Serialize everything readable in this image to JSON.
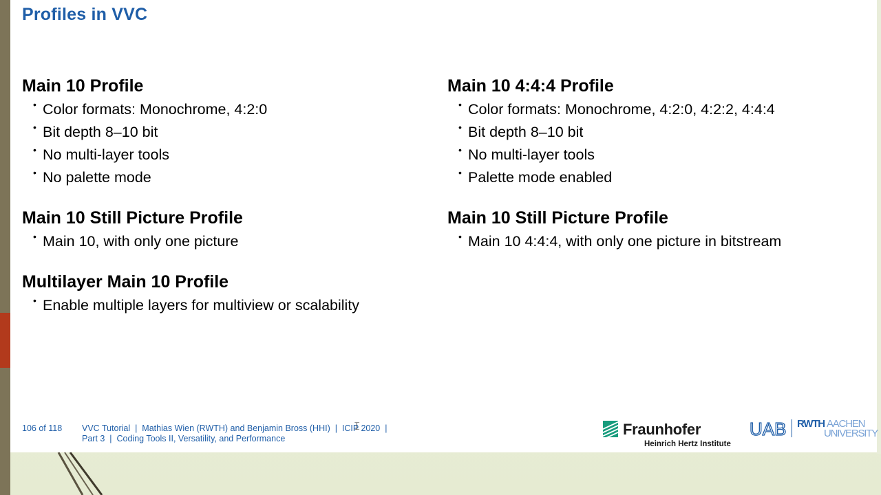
{
  "slide": {
    "title": "Profiles in VVC",
    "left_column": [
      {
        "heading": "Main 10 Profile",
        "bullets": [
          "Color formats: Monochrome, 4:2:0",
          "Bit depth 8–10 bit",
          "No multi-layer tools",
          "No palette mode"
        ]
      },
      {
        "heading": "Main 10 Still Picture Profile",
        "bullets": [
          "Main 10, with only one picture"
        ]
      },
      {
        "heading": "Multilayer Main 10 Profile",
        "bullets": [
          "Enable multiple layers for multiview or scalability"
        ]
      }
    ],
    "right_column": [
      {
        "heading": "Main 10 4:4:4 Profile",
        "bullets": [
          "Color formats: Monochrome, 4:2:0, 4:2:2, 4:4:4",
          "Bit depth 8–10 bit",
          "No multi-layer tools",
          "Palette mode enabled"
        ]
      },
      {
        "heading": "Main 10 Still Picture Profile",
        "bullets": [
          "Main 10 4:4:4, with only one picture in bitstream"
        ]
      }
    ],
    "bullet_glyph": "•"
  },
  "footer": {
    "page": "106 of 118",
    "line1": "VVC Tutorial  |  Mathias Wien (RWTH) and Benjamin Bross (HHI)  |  ICIP 2020  |",
    "line2": "Part 3  |  Coding Tools II, Versatility, and Performance"
  },
  "logos": {
    "fraunhofer_name": "Fraunhofer",
    "fraunhofer_sub": "Heinrich Hertz Institute",
    "uab_text": "UAB",
    "rwth_bold": "RWTH",
    "rwth_light_1": "AACHEN",
    "rwth_light_2": "UNIVERSITY"
  },
  "colors": {
    "title": "#1f5ea8",
    "fraunhofer_green": "#179c7d",
    "rwth_blue": "#1f5ea8",
    "accent_red": "#b23a1c"
  },
  "icons": {
    "cursor": "text-cursor-icon"
  }
}
